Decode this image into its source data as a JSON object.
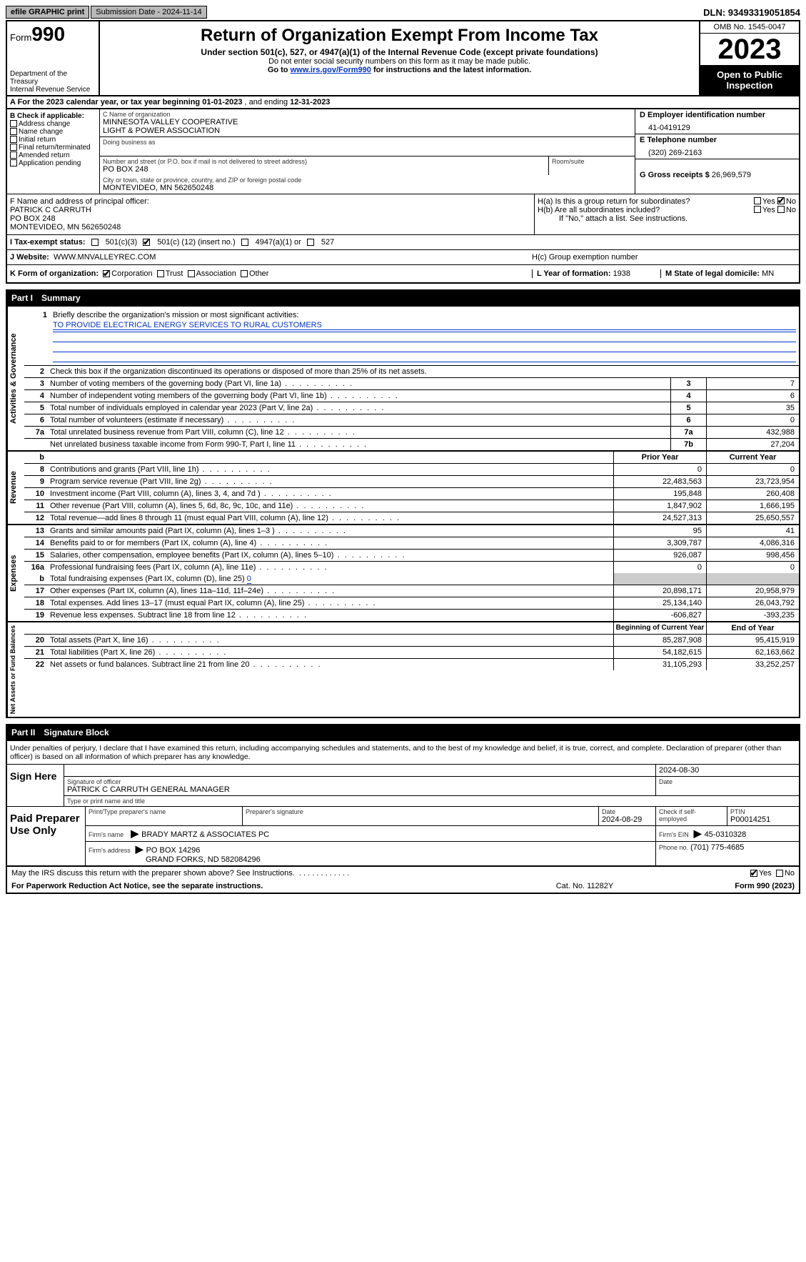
{
  "topbar": {
    "efile": "efile GRAPHIC print",
    "submission": "Submission Date - 2024-11-14",
    "dln": "DLN: 93493319051854"
  },
  "header": {
    "form_label": "Form",
    "form_num": "990",
    "dept": "Department of the Treasury",
    "irs": "Internal Revenue Service",
    "title": "Return of Organization Exempt From Income Tax",
    "sub1": "Under section 501(c), 527, or 4947(a)(1) of the Internal Revenue Code (except private foundations)",
    "sub2": "Do not enter social security numbers on this form as it may be made public.",
    "sub3_a": "Go to ",
    "sub3_link": "www.irs.gov/Form990",
    "sub3_b": " for instructions and the latest information.",
    "omb": "OMB No. 1545-0047",
    "year": "2023",
    "open": "Open to Public Inspection"
  },
  "rowA": {
    "prefix": "A For the 2023 calendar year, or tax year beginning ",
    "begin": "01-01-2023",
    "mid": " , and ending ",
    "end": "12-31-2023"
  },
  "colB": {
    "title": "B Check if applicable:",
    "items": [
      "Address change",
      "Name change",
      "Initial return",
      "Final return/terminated",
      "Amended return",
      "Application pending"
    ]
  },
  "colC": {
    "name_lbl": "C Name of organization",
    "name1": "MINNESOTA VALLEY COOPERATIVE",
    "name2": "LIGHT & POWER ASSOCIATION",
    "dba_lbl": "Doing business as",
    "addr_lbl": "Number and street (or P.O. box if mail is not delivered to street address)",
    "room_lbl": "Room/suite",
    "addr": "PO BOX 248",
    "city_lbl": "City or town, state or province, country, and ZIP or foreign postal code",
    "city": "MONTEVIDEO, MN  562650248"
  },
  "colD": {
    "ein_lbl": "D Employer identification number",
    "ein": "41-0419129",
    "tel_lbl": "E Telephone number",
    "tel": "(320) 269-2163",
    "gross_lbl": "G Gross receipts $ ",
    "gross": "26,969,579"
  },
  "rowF": {
    "lbl": "F  Name and address of principal officer:",
    "name": "PATRICK C CARRUTH",
    "addr1": "PO BOX 248",
    "addr2": "MONTEVIDEO, MN  562650248"
  },
  "rowH": {
    "ha": "H(a)  Is this a group return for subordinates?",
    "hb": "H(b)  Are all subordinates included?",
    "hb_note": "If \"No,\" attach a list. See instructions.",
    "hc": "H(c)  Group exemption number",
    "yes": "Yes",
    "no": "No"
  },
  "rowI": {
    "lbl": "I   Tax-exempt status:",
    "o1": "501(c)(3)",
    "o2a": "501(c) (",
    "o2b": "12",
    "o2c": ") (insert no.)",
    "o3": "4947(a)(1) or",
    "o4": "527"
  },
  "rowJ": {
    "lbl": "J   Website:",
    "val": "WWW.MNVALLEYREC.COM"
  },
  "rowK": {
    "lbl": "K Form of organization:",
    "opts": [
      "Corporation",
      "Trust",
      "Association",
      "Other"
    ],
    "l_lbl": "L Year of formation: ",
    "l_val": "1938",
    "m_lbl": "M State of legal domicile: ",
    "m_val": "MN"
  },
  "part1": {
    "hdr_pt": "Part I",
    "hdr_title": "Summary",
    "sec_labels": {
      "ag": "Activities & Governance",
      "rev": "Revenue",
      "exp": "Expenses",
      "na": "Net Assets or Fund Balances"
    },
    "r1_lbl": "Briefly describe the organization's mission or most significant activities:",
    "r1_val": "TO PROVIDE ELECTRICAL ENERGY SERVICES TO RURAL CUSTOMERS",
    "r2": "Check this box        if the organization discontinued its operations or disposed of more than 25% of its net assets.",
    "rows_ag": [
      {
        "n": "3",
        "t": "Number of voting members of the governing body (Part VI, line 1a)",
        "b": "3",
        "v": "7"
      },
      {
        "n": "4",
        "t": "Number of independent voting members of the governing body (Part VI, line 1b)",
        "b": "4",
        "v": "6"
      },
      {
        "n": "5",
        "t": "Total number of individuals employed in calendar year 2023 (Part V, line 2a)",
        "b": "5",
        "v": "35"
      },
      {
        "n": "6",
        "t": "Total number of volunteers (estimate if necessary)",
        "b": "6",
        "v": "0"
      },
      {
        "n": "7a",
        "t": "Total unrelated business revenue from Part VIII, column (C), line 12",
        "b": "7a",
        "v": "432,988"
      },
      {
        "n": "",
        "t": "Net unrelated business taxable income from Form 990-T, Part I, line 11",
        "b": "7b",
        "v": "27,204"
      }
    ],
    "col_hdrs": {
      "b": "b",
      "py": "Prior Year",
      "cy": "Current Year"
    },
    "rows_rev": [
      {
        "n": "8",
        "t": "Contributions and grants (Part VIII, line 1h)",
        "py": "0",
        "cy": "0"
      },
      {
        "n": "9",
        "t": "Program service revenue (Part VIII, line 2g)",
        "py": "22,483,563",
        "cy": "23,723,954"
      },
      {
        "n": "10",
        "t": "Investment income (Part VIII, column (A), lines 3, 4, and 7d )",
        "py": "195,848",
        "cy": "260,408"
      },
      {
        "n": "11",
        "t": "Other revenue (Part VIII, column (A), lines 5, 6d, 8c, 9c, 10c, and 11e)",
        "py": "1,847,902",
        "cy": "1,666,195"
      },
      {
        "n": "12",
        "t": "Total revenue—add lines 8 through 11 (must equal Part VIII, column (A), line 12)",
        "py": "24,527,313",
        "cy": "25,650,557"
      }
    ],
    "rows_exp": [
      {
        "n": "13",
        "t": "Grants and similar amounts paid (Part IX, column (A), lines 1–3 )",
        "py": "95",
        "cy": "41"
      },
      {
        "n": "14",
        "t": "Benefits paid to or for members (Part IX, column (A), line 4)",
        "py": "3,309,787",
        "cy": "4,086,316"
      },
      {
        "n": "15",
        "t": "Salaries, other compensation, employee benefits (Part IX, column (A), lines 5–10)",
        "py": "926,087",
        "cy": "998,456"
      },
      {
        "n": "16a",
        "t": "Professional fundraising fees (Part IX, column (A), line 11e)",
        "py": "0",
        "cy": "0"
      }
    ],
    "row_16b": {
      "n": "b",
      "t": "Total fundraising expenses (Part IX, column (D), line 25) ",
      "v": "0"
    },
    "rows_exp2": [
      {
        "n": "17",
        "t": "Other expenses (Part IX, column (A), lines 11a–11d, 11f–24e)",
        "py": "20,898,171",
        "cy": "20,958,979"
      },
      {
        "n": "18",
        "t": "Total expenses. Add lines 13–17 (must equal Part IX, column (A), line 25)",
        "py": "25,134,140",
        "cy": "26,043,792"
      },
      {
        "n": "19",
        "t": "Revenue less expenses. Subtract line 18 from line 12",
        "py": "-606,827",
        "cy": "-393,235"
      }
    ],
    "na_hdrs": {
      "by": "Beginning of Current Year",
      "ey": "End of Year"
    },
    "rows_na": [
      {
        "n": "20",
        "t": "Total assets (Part X, line 16)",
        "py": "85,287,908",
        "cy": "95,415,919"
      },
      {
        "n": "21",
        "t": "Total liabilities (Part X, line 26)",
        "py": "54,182,615",
        "cy": "62,163,662"
      },
      {
        "n": "22",
        "t": "Net assets or fund balances. Subtract line 21 from line 20",
        "py": "31,105,293",
        "cy": "33,252,257"
      }
    ]
  },
  "part2": {
    "hdr_pt": "Part II",
    "hdr_title": "Signature Block",
    "intro": "Under penalties of perjury, I declare that I have examined this return, including accompanying schedules and statements, and to the best of my knowledge and belief, it is true, correct, and complete. Declaration of preparer (other than officer) is based on all information of which preparer has any knowledge.",
    "sign_here": "Sign Here",
    "sig_off_lbl": "Signature of officer",
    "sig_date": "2024-08-30",
    "sig_date_lbl": "Date",
    "officer": "PATRICK C CARRUTH  GENERAL MANAGER",
    "type_lbl": "Type or print name and title",
    "paid": "Paid Preparer Use Only",
    "pp_name_lbl": "Print/Type preparer's name",
    "pp_sig_lbl": "Preparer's signature",
    "pp_date_lbl": "Date",
    "pp_date": "2024-08-29",
    "pp_check": "Check          if self-employed",
    "ptin_lbl": "PTIN",
    "ptin": "P00014251",
    "firm_name_lbl": "Firm's name",
    "firm_name": "BRADY MARTZ & ASSOCIATES PC",
    "firm_ein_lbl": "Firm's EIN",
    "firm_ein": "45-0310328",
    "firm_addr_lbl": "Firm's address",
    "firm_addr1": "PO BOX 14296",
    "firm_addr2": "GRAND FORKS, ND  582084296",
    "phone_lbl": "Phone no.",
    "phone": "(701) 775-4685",
    "may": "May the IRS discuss this return with the preparer shown above? See Instructions.",
    "yes": "Yes",
    "no": "No"
  },
  "footer": {
    "f1": "For Paperwork Reduction Act Notice, see the separate instructions.",
    "f2": "Cat. No. 11282Y",
    "f3": "Form 990 (2023)"
  }
}
